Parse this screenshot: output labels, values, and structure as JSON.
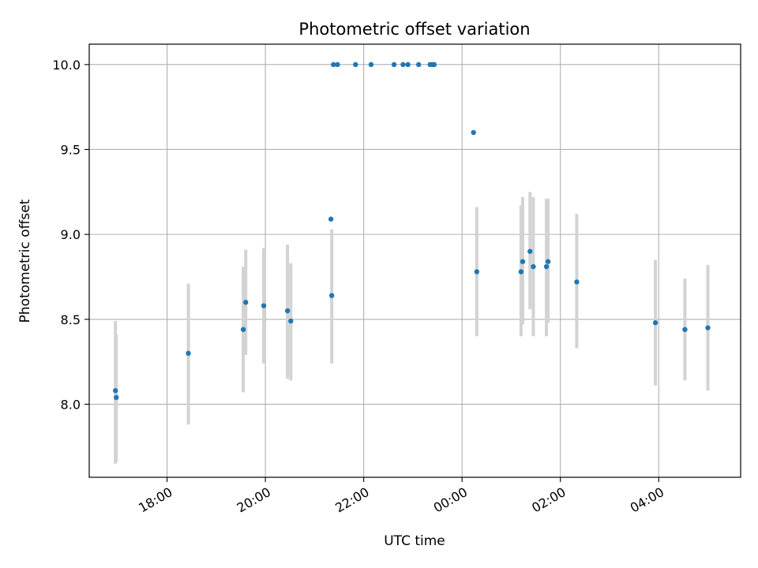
{
  "chart_data": {
    "type": "scatter",
    "title": "Photometric offset variation",
    "xlabel": "UTC time",
    "ylabel": "Photometric offset",
    "x_tick_labels": [
      "18:00",
      "20:00",
      "22:00",
      "00:00",
      "02:00",
      "04:00"
    ],
    "x_tick_hours": [
      18,
      20,
      22,
      24,
      26,
      28
    ],
    "y_tick_labels": [
      "8.0",
      "8.5",
      "9.0",
      "9.5",
      "10.0"
    ],
    "y_tick_values": [
      8.0,
      8.5,
      9.0,
      9.5,
      10.0
    ],
    "xlim": [
      "16:25",
      "05:40"
    ],
    "ylim": [
      7.57,
      10.12
    ],
    "grid": true,
    "colors": {
      "point": "#1f77b4",
      "errorbar": "#d3d3d3",
      "grid": "#b0b0b0",
      "axis": "#000000"
    },
    "points": [
      {
        "x": "16:57",
        "y": 8.08,
        "err": [
          8.49,
          7.65
        ]
      },
      {
        "x": "16:58",
        "y": 8.04,
        "err": [
          8.41,
          7.66
        ]
      },
      {
        "x": "18:26",
        "y": 8.3,
        "err": [
          8.71,
          7.88
        ]
      },
      {
        "x": "19:33",
        "y": 8.44,
        "err": [
          8.81,
          8.07
        ]
      },
      {
        "x": "19:36",
        "y": 8.6,
        "err": [
          8.91,
          8.29
        ]
      },
      {
        "x": "19:58",
        "y": 8.58,
        "err": [
          8.92,
          8.24
        ]
      },
      {
        "x": "20:27",
        "y": 8.55,
        "err": [
          8.94,
          8.15
        ]
      },
      {
        "x": "20:31",
        "y": 8.49,
        "err": [
          8.83,
          8.14
        ]
      },
      {
        "x": "21:20",
        "y": 9.09,
        "err": null
      },
      {
        "x": "21:21",
        "y": 8.64,
        "err": [
          9.03,
          8.24
        ]
      },
      {
        "x": "21:23",
        "y": 10.0,
        "err": null
      },
      {
        "x": "21:28",
        "y": 10.0,
        "err": null
      },
      {
        "x": "21:50",
        "y": 10.0,
        "err": null
      },
      {
        "x": "22:09",
        "y": 10.0,
        "err": null
      },
      {
        "x": "22:37",
        "y": 10.0,
        "err": null
      },
      {
        "x": "22:48",
        "y": 10.0,
        "err": null
      },
      {
        "x": "22:54",
        "y": 10.0,
        "err": null
      },
      {
        "x": "23:07",
        "y": 10.0,
        "err": null
      },
      {
        "x": "23:21",
        "y": 10.0,
        "err": null
      },
      {
        "x": "23:24",
        "y": 10.0,
        "err": null
      },
      {
        "x": "23:26",
        "y": 10.0,
        "err": null
      },
      {
        "x": "00:14",
        "y": 9.6,
        "err": null
      },
      {
        "x": "00:18",
        "y": 8.78,
        "err": [
          9.16,
          8.4
        ]
      },
      {
        "x": "01:12",
        "y": 8.78,
        "err": [
          9.17,
          8.4
        ]
      },
      {
        "x": "01:14",
        "y": 8.84,
        "err": [
          9.22,
          8.47
        ]
      },
      {
        "x": "01:23",
        "y": 8.9,
        "err": [
          9.25,
          8.56
        ]
      },
      {
        "x": "01:27",
        "y": 8.81,
        "err": [
          9.22,
          8.4
        ]
      },
      {
        "x": "01:43",
        "y": 8.81,
        "err": [
          9.21,
          8.4
        ]
      },
      {
        "x": "01:45",
        "y": 8.84,
        "err": [
          9.21,
          8.48
        ]
      },
      {
        "x": "02:20",
        "y": 8.72,
        "err": [
          9.12,
          8.33
        ]
      },
      {
        "x": "03:56",
        "y": 8.48,
        "err": [
          8.85,
          8.11
        ]
      },
      {
        "x": "04:32",
        "y": 8.44,
        "err": [
          8.74,
          8.14
        ]
      },
      {
        "x": "05:00",
        "y": 8.45,
        "err": [
          8.82,
          8.08
        ]
      }
    ]
  }
}
